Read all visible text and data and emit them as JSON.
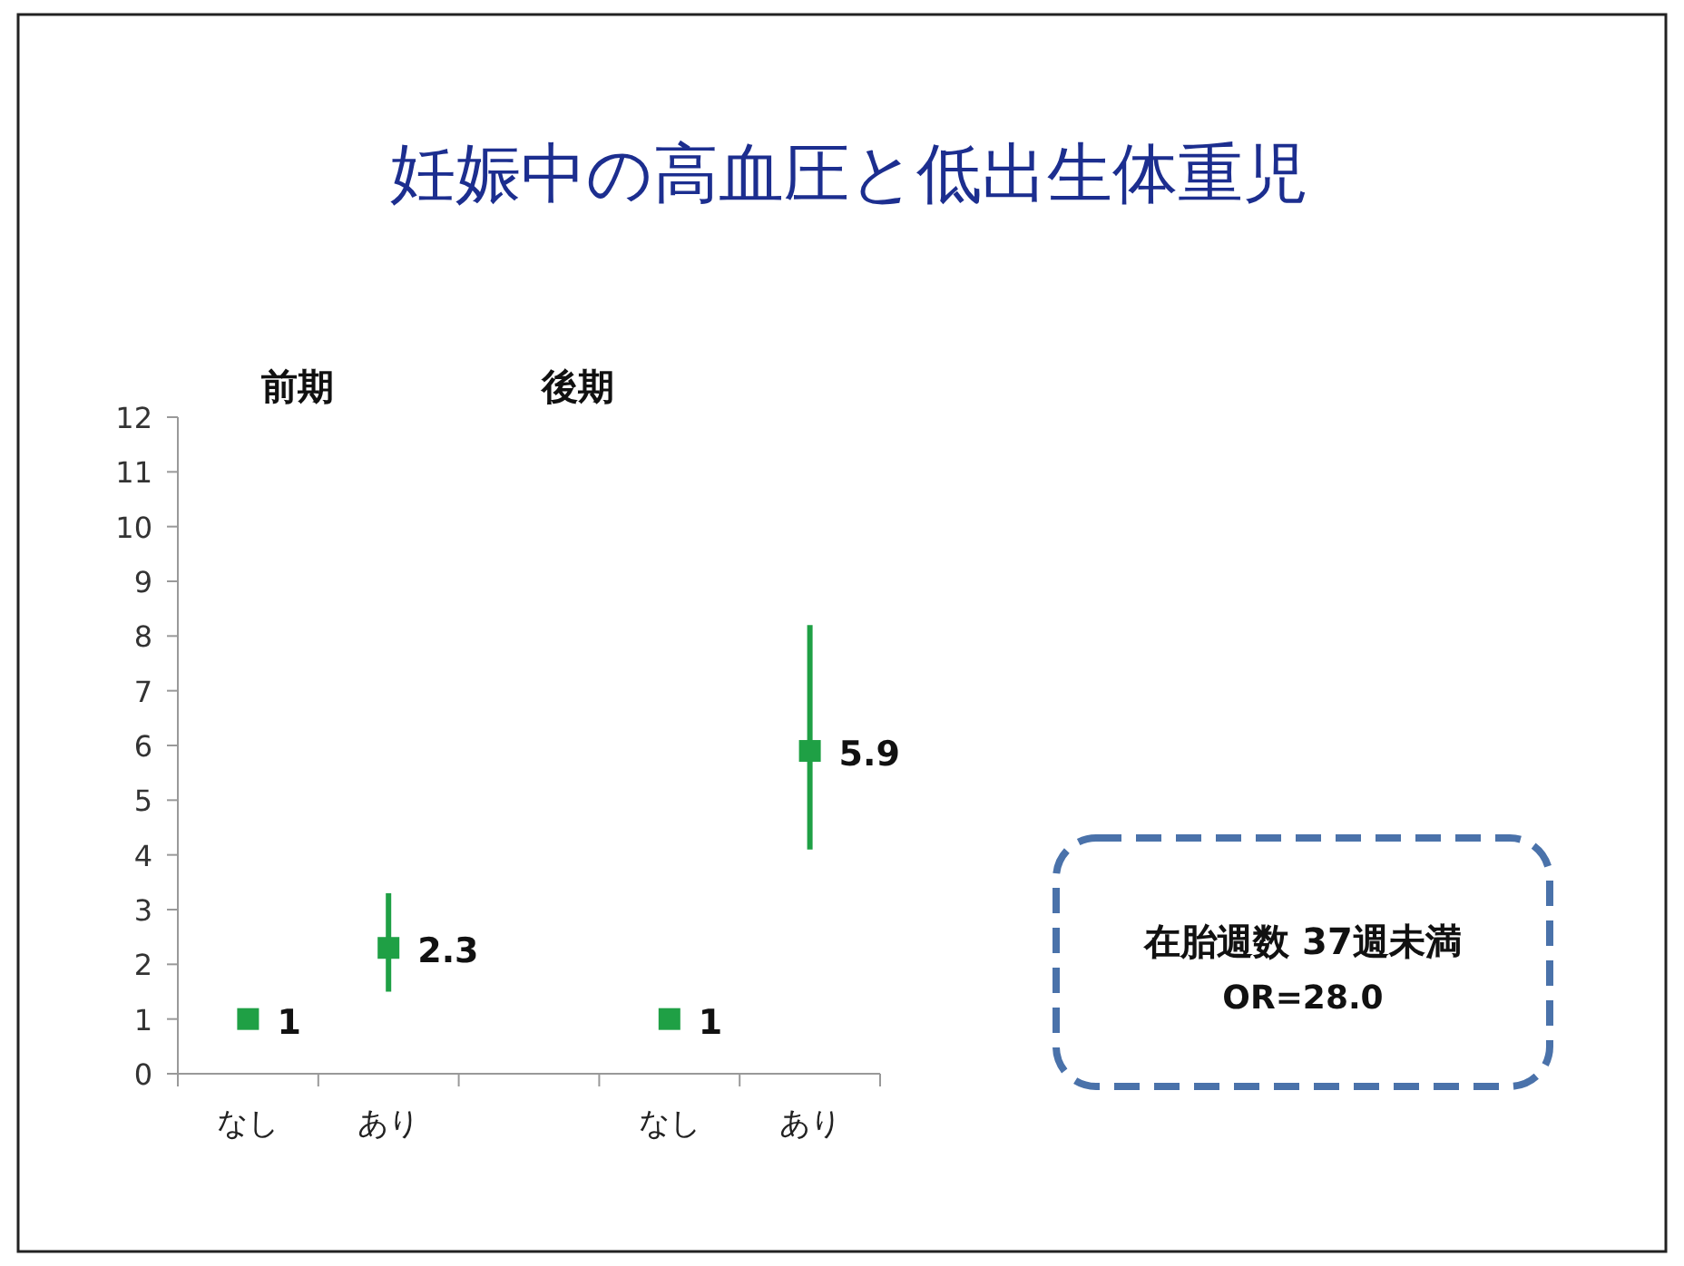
{
  "chart_data": {
    "type": "scatter",
    "title": "妊娠中の高血圧と低出生体重児",
    "categories": [
      "なし",
      "あり",
      null,
      "なし",
      "あり"
    ],
    "values": [
      1,
      2.3,
      null,
      1,
      5.9
    ],
    "errors": [
      null,
      [
        1.5,
        3.3
      ],
      null,
      null,
      [
        4.1,
        8.2
      ]
    ],
    "color": "#1fa045",
    "marker": "square",
    "data_labels": true,
    "grid": false,
    "ylim": [
      0,
      12
    ],
    "yticks": [
      0,
      1,
      2,
      3,
      4,
      5,
      6,
      7,
      8,
      9,
      10,
      11,
      12
    ],
    "annotations": [
      "前期",
      "後期",
      "在胎週数  37週未満",
      "OR=28.0"
    ]
  }
}
